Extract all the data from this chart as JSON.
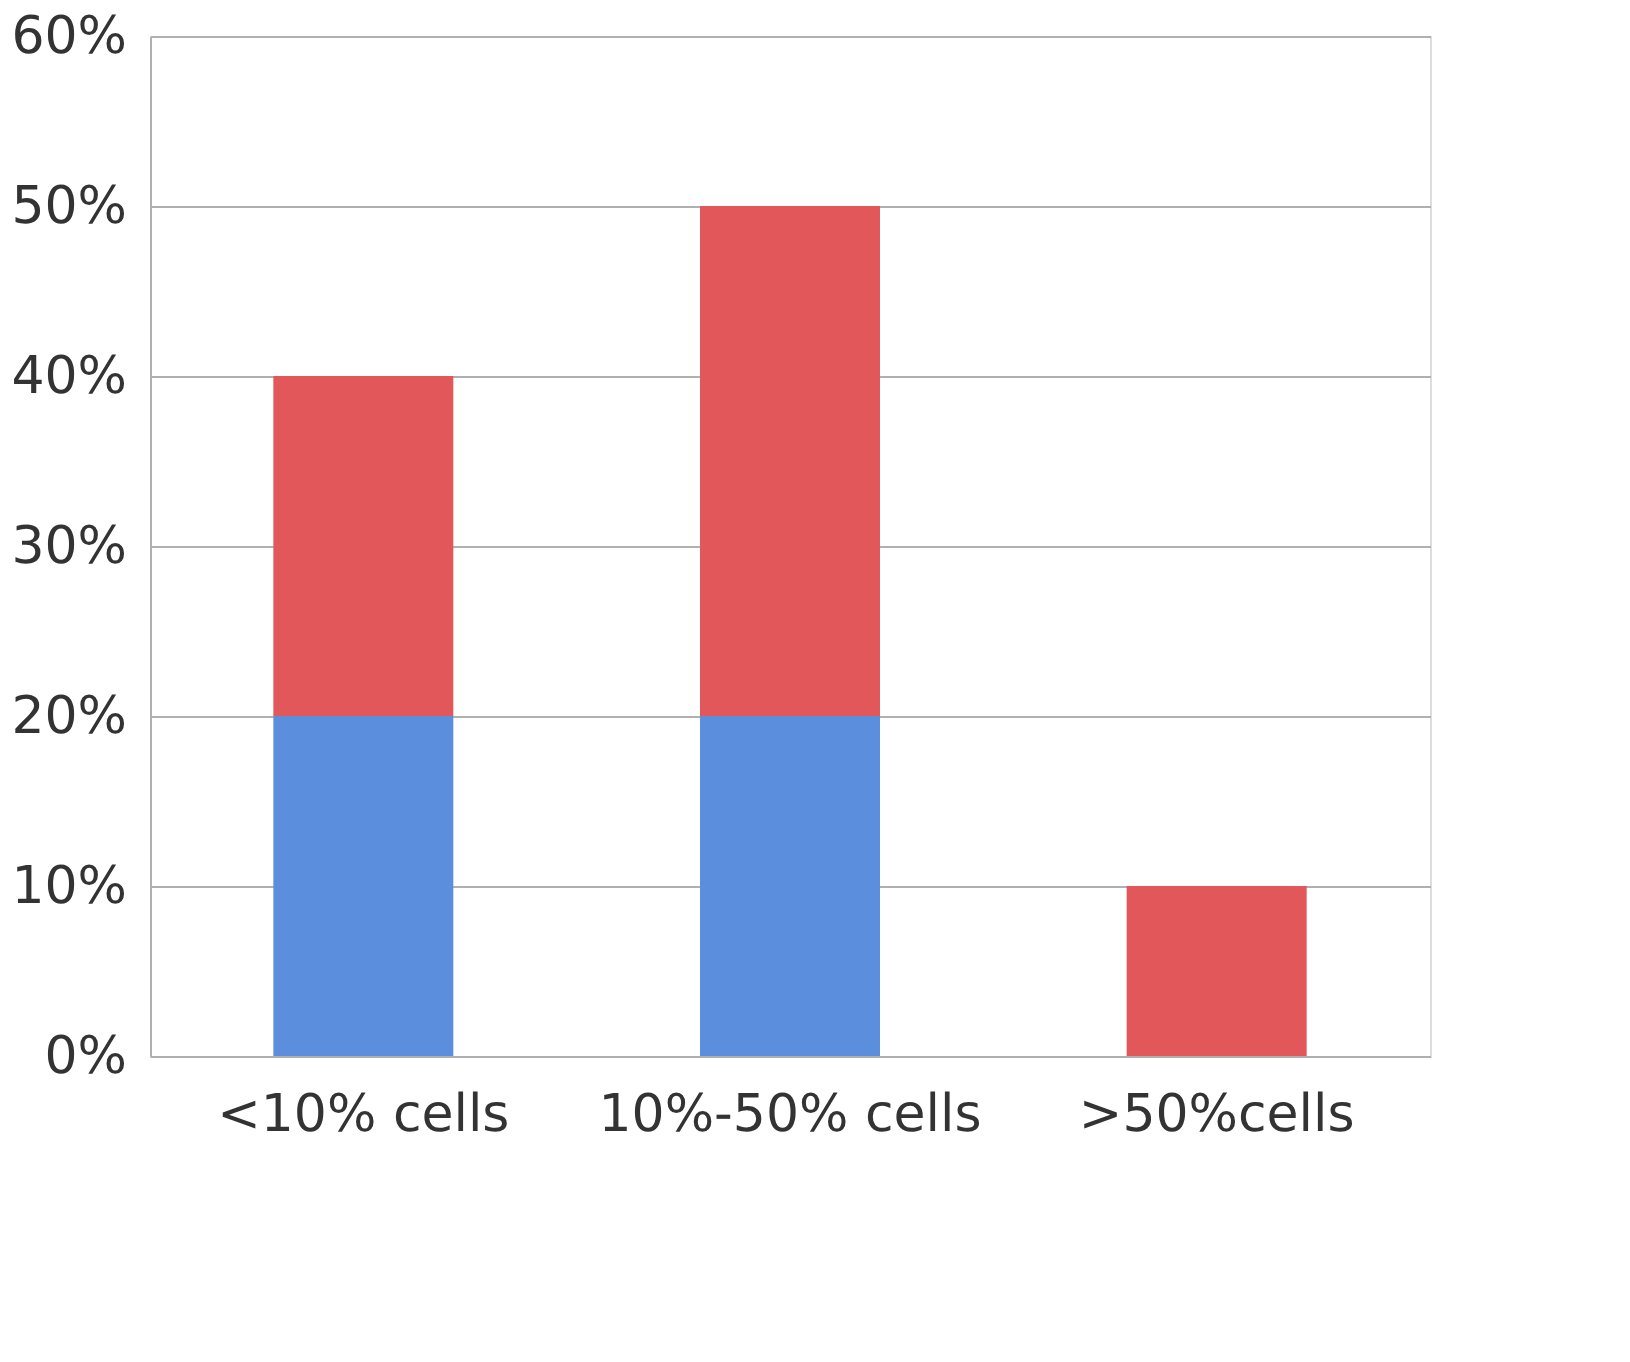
{
  "chart_data": {
    "type": "bar",
    "stacked": true,
    "categories": [
      "<10% cells",
      "10%-50% cells",
      ">50%cells"
    ],
    "series": [
      {
        "color": "#5b8fde",
        "values": [
          20,
          20,
          null
        ]
      },
      {
        "color": "#e2575a",
        "values": [
          20,
          30,
          10
        ]
      }
    ],
    "ylim": [
      0,
      60
    ],
    "yticks": [
      {
        "value": 0,
        "label": "0%"
      },
      {
        "value": 10,
        "label": "10%"
      },
      {
        "value": 20,
        "label": "20%"
      },
      {
        "value": 30,
        "label": "30%"
      },
      {
        "value": 40,
        "label": "40%"
      },
      {
        "value": 50,
        "label": "50%"
      },
      {
        "value": 60,
        "label": "60%"
      }
    ],
    "grid": "y",
    "legend": false
  }
}
